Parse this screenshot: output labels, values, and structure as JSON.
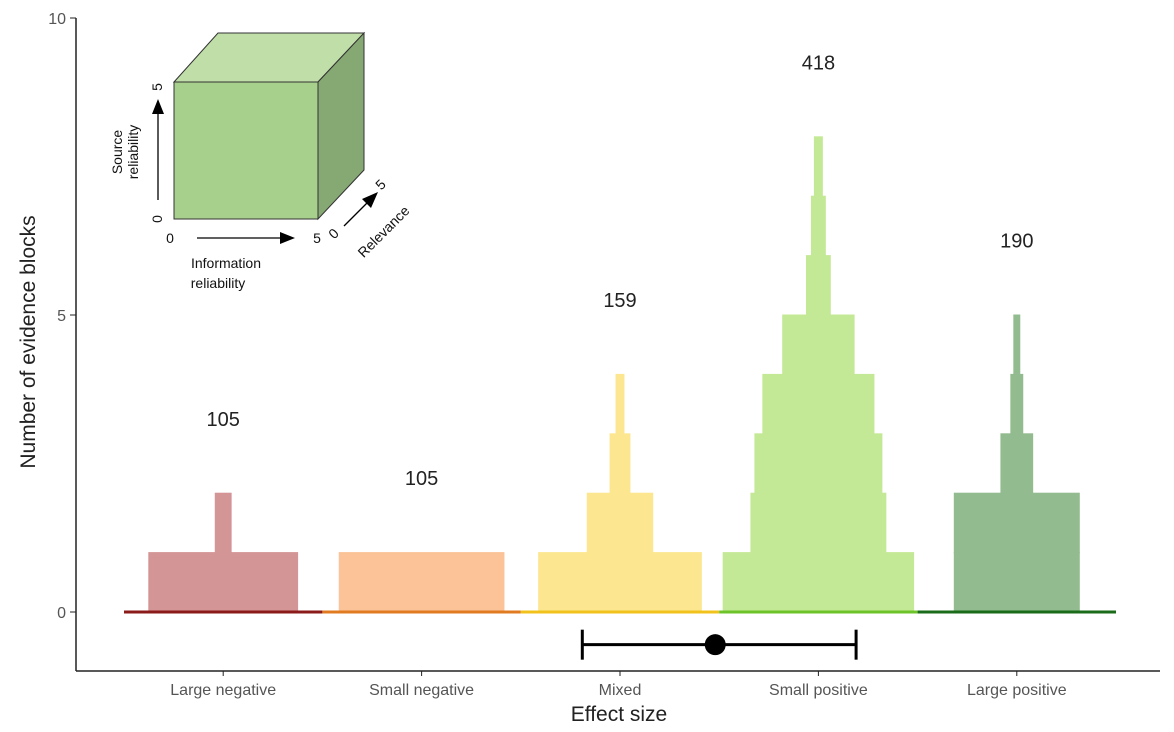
{
  "chart_data": {
    "type": "bar",
    "xlabel": "Effect size",
    "ylabel": "Number of evidence blocks",
    "ylim": [
      -1,
      10
    ],
    "yticks": [
      0,
      5,
      10
    ],
    "grid": false,
    "categories": [
      {
        "label": "Large negative",
        "total": "105",
        "color": "#d49597",
        "base_color": "#8b1a1a",
        "tiers": [
          {
            "level": 1,
            "width": 0.75
          },
          {
            "level": 2,
            "width": 0.08
          }
        ]
      },
      {
        "label": "Small negative",
        "total": "105",
        "color": "#fbc397",
        "base_color": "#e07b22",
        "tiers": [
          {
            "level": 1,
            "width": 0.83
          }
        ]
      },
      {
        "label": "Mixed",
        "total": "159",
        "color": "#fce790",
        "base_color": "#f1c21b",
        "tiers": [
          {
            "level": 1,
            "width": 0.82
          },
          {
            "level": 2,
            "width": 0.33
          },
          {
            "level": 3,
            "width": 0.1
          },
          {
            "level": 4,
            "width": 0.04
          }
        ]
      },
      {
        "label": "Small positive",
        "total": "418",
        "color": "#c4e996",
        "base_color": "#6cc42a",
        "tiers": [
          {
            "level": 1,
            "width": 0.96
          },
          {
            "level": 2,
            "width": 0.68
          },
          {
            "level": 3,
            "width": 0.64
          },
          {
            "level": 4,
            "width": 0.56
          },
          {
            "level": 5,
            "width": 0.36
          },
          {
            "level": 6,
            "width": 0.12
          },
          {
            "level": 7,
            "width": 0.07
          },
          {
            "level": 8,
            "width": 0.04
          }
        ]
      },
      {
        "label": "Large positive",
        "total": "190",
        "color": "#92bc8f",
        "base_color": "#1a6b1a",
        "tiers": [
          {
            "level": 1,
            "width": 0.63
          },
          {
            "level": 2,
            "width": 0.63
          },
          {
            "level": 3,
            "width": 0.16
          },
          {
            "level": 4,
            "width": 0.06
          },
          {
            "level": 5,
            "width": 0.03
          }
        ]
      }
    ],
    "summary_interval": {
      "low": 2.31,
      "point": 2.98,
      "high": 3.69,
      "y": -0.55
    },
    "inset": {
      "source_label_line1": "Source",
      "source_label_line2": "reliability",
      "info_label_line1": "Information",
      "info_label_line2": "reliability",
      "relevance_label": "Relevance",
      "axis_min": "0",
      "axis_max": "5",
      "face_color": "#a8d08d",
      "top_color": "#c0dfa8",
      "side_color": "#86a873"
    }
  }
}
